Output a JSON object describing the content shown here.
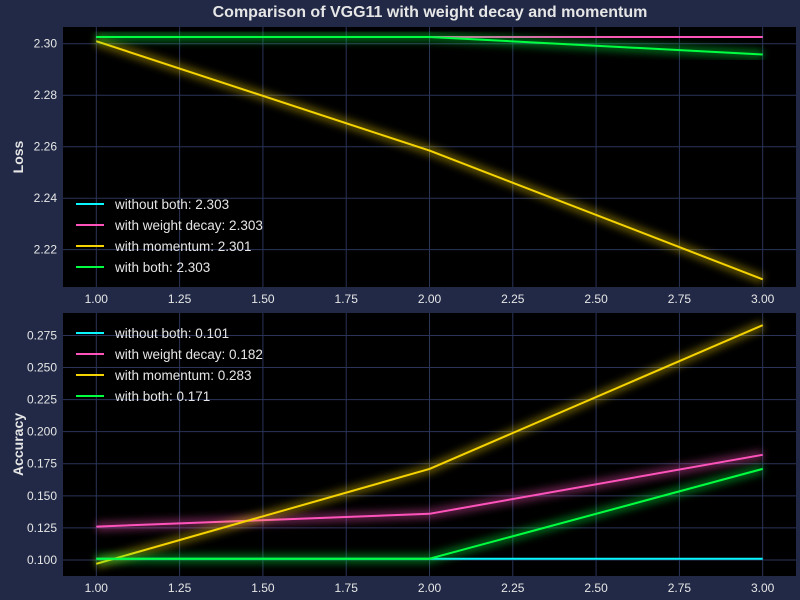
{
  "figure_title": "Comparison of VGG11 with weight decay and momentum",
  "colors": {
    "background": "#212946",
    "axes_bg": "#000000",
    "grid": "#2A3459",
    "series": [
      "#08F7FE",
      "#FE53BB",
      "#F5D300",
      "#00ff41"
    ]
  },
  "chart_data": [
    {
      "type": "line",
      "ylabel": "Loss",
      "xlabel": "",
      "x": [
        1.0,
        2.0,
        3.0
      ],
      "xlim": [
        0.9,
        3.1
      ],
      "ylim": [
        2.2055,
        2.3065
      ],
      "xticks": [
        "1.00",
        "1.25",
        "1.50",
        "1.75",
        "2.00",
        "2.25",
        "2.50",
        "2.75",
        "3.00"
      ],
      "yticks": [
        "2.22",
        "2.24",
        "2.26",
        "2.28",
        "2.30"
      ],
      "grid": true,
      "legend_position": "lower-left",
      "series": [
        {
          "name": "without both: 2.303",
          "values": [
            2.3026,
            2.3026,
            2.3026
          ]
        },
        {
          "name": "with weight decay: 2.303",
          "values": [
            2.3026,
            2.3026,
            2.3026
          ]
        },
        {
          "name": "with momentum: 2.301",
          "values": [
            2.301,
            2.2585,
            2.2085
          ]
        },
        {
          "name": "with both: 2.303",
          "values": [
            2.3026,
            2.3026,
            2.2958
          ]
        }
      ]
    },
    {
      "type": "line",
      "ylabel": "Accuracy",
      "xlabel": "",
      "x": [
        1.0,
        2.0,
        3.0
      ],
      "xlim": [
        0.9,
        3.1
      ],
      "ylim": [
        0.0875,
        0.2925
      ],
      "xticks": [
        "1.00",
        "1.25",
        "1.50",
        "1.75",
        "2.00",
        "2.25",
        "2.50",
        "2.75",
        "3.00"
      ],
      "yticks": [
        "0.100",
        "0.125",
        "0.150",
        "0.175",
        "0.200",
        "0.225",
        "0.250",
        "0.275"
      ],
      "grid": true,
      "legend_position": "upper-left",
      "series": [
        {
          "name": "without both: 0.101",
          "values": [
            0.101,
            0.101,
            0.101
          ]
        },
        {
          "name": "with weight decay: 0.182",
          "values": [
            0.126,
            0.136,
            0.182
          ]
        },
        {
          "name": "with momentum: 0.283",
          "values": [
            0.097,
            0.171,
            0.283
          ]
        },
        {
          "name": "with both: 0.171",
          "values": [
            0.101,
            0.101,
            0.171
          ]
        }
      ]
    }
  ]
}
